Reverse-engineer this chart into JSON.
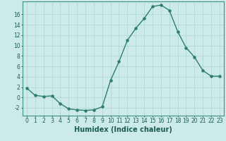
{
  "x": [
    0,
    1,
    2,
    3,
    4,
    5,
    6,
    7,
    8,
    9,
    10,
    11,
    12,
    13,
    14,
    15,
    16,
    17,
    18,
    19,
    20,
    21,
    22,
    23
  ],
  "y": [
    1.8,
    0.4,
    0.2,
    0.3,
    -1.2,
    -2.2,
    -2.4,
    -2.5,
    -2.4,
    -1.8,
    3.3,
    6.9,
    11.0,
    13.3,
    15.2,
    17.5,
    17.8,
    16.8,
    12.7,
    9.6,
    7.8,
    5.2,
    4.1,
    4.1
  ],
  "line_color": "#2e7d6e",
  "marker": "o",
  "markersize": 2.2,
  "linewidth": 1.0,
  "xlabel": "Humidex (Indice chaleur)",
  "xlabel_fontsize": 7,
  "xlim": [
    -0.5,
    23.5
  ],
  "ylim": [
    -3.5,
    18.5
  ],
  "yticks": [
    -2,
    0,
    2,
    4,
    6,
    8,
    10,
    12,
    14,
    16
  ],
  "xticks": [
    0,
    1,
    2,
    3,
    4,
    5,
    6,
    7,
    8,
    9,
    10,
    11,
    12,
    13,
    14,
    15,
    16,
    17,
    18,
    19,
    20,
    21,
    22,
    23
  ],
  "xtick_labels": [
    "0",
    "1",
    "2",
    "3",
    "4",
    "5",
    "6",
    "7",
    "8",
    "9",
    "10",
    "11",
    "12",
    "13",
    "14",
    "15",
    "16",
    "17",
    "18",
    "19",
    "20",
    "21",
    "22",
    "23"
  ],
  "background_color": "#cceaea",
  "grid_color": "#b0d8d8",
  "tick_fontsize": 5.5,
  "label_color": "#1a5c52",
  "spine_color": "#3d8f80"
}
